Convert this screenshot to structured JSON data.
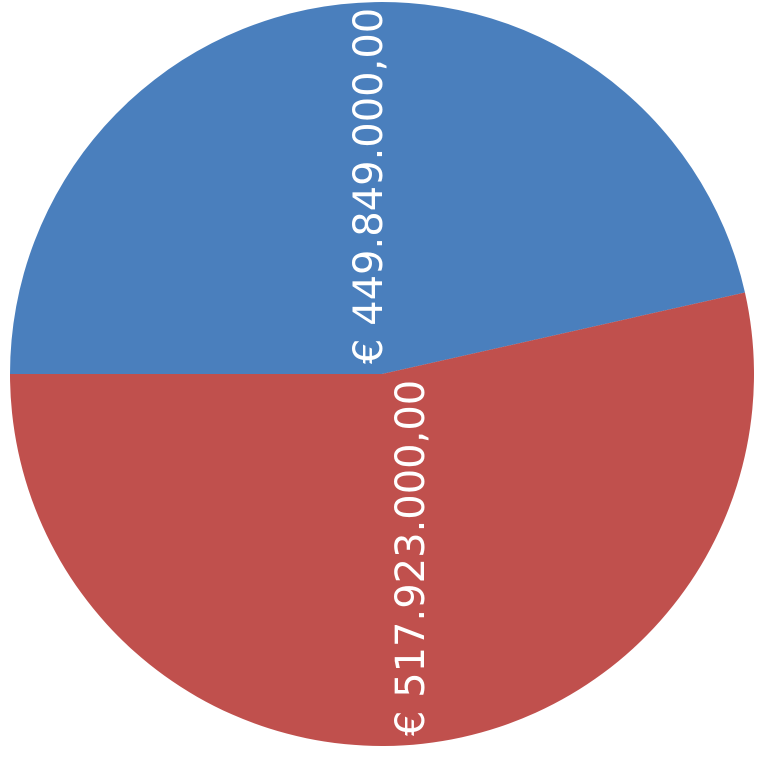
{
  "chart_data": {
    "type": "pie",
    "categories": [
      "",
      ""
    ],
    "values": [
      449849000,
      517923000
    ],
    "labels": [
      "€ 449.849.000,00",
      "€ 517.923.000,00"
    ],
    "colors": [
      "#4a7fbd",
      "#c0504d"
    ],
    "title": "",
    "legend": "none"
  }
}
